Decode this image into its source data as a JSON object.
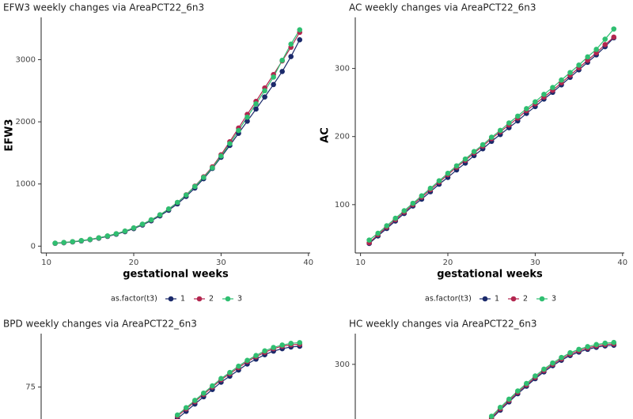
{
  "chart_data": [
    {
      "type": "line",
      "title": "EFW3 weekly changes via AreaPCT22_6n3",
      "xlabel": "gestational weeks",
      "ylabel": "EFW3",
      "legend_title": "as.factor(t3)",
      "legend": "bottom",
      "grid": false,
      "x": [
        11,
        12,
        13,
        14,
        15,
        16,
        17,
        18,
        19,
        20,
        21,
        22,
        23,
        24,
        25,
        26,
        27,
        28,
        29,
        30,
        31,
        32,
        33,
        34,
        35,
        36,
        37,
        38,
        39
      ],
      "xlim": [
        9.4,
        40.2
      ],
      "xticks": [
        10,
        20,
        30,
        40
      ],
      "ylim": [
        -110,
        3680
      ],
      "yticks": [
        0,
        1000,
        2000,
        3000
      ],
      "series": [
        {
          "name": "1",
          "color": "#1b2a6b",
          "values": [
            45,
            55,
            68,
            84,
            104,
            128,
            157,
            192,
            233,
            282,
            340,
            408,
            487,
            578,
            680,
            800,
            935,
            1085,
            1250,
            1430,
            1620,
            1815,
            2010,
            2205,
            2400,
            2600,
            2810,
            3050,
            3320
          ]
        },
        {
          "name": "2",
          "color": "#b3264f",
          "values": [
            47,
            58,
            71,
            88,
            108,
            133,
            163,
            199,
            241,
            292,
            352,
            422,
            503,
            597,
            702,
            825,
            965,
            1115,
            1275,
            1470,
            1680,
            1900,
            2120,
            2330,
            2545,
            2760,
            2980,
            3200,
            3440
          ]
        },
        {
          "name": "3",
          "color": "#2fbf71",
          "values": [
            48,
            59,
            72,
            89,
            109,
            134,
            164,
            200,
            242,
            293,
            353,
            423,
            504,
            598,
            703,
            822,
            960,
            1105,
            1260,
            1450,
            1650,
            1860,
            2075,
            2290,
            2500,
            2720,
            2990,
            3250,
            3480
          ]
        }
      ]
    },
    {
      "type": "line",
      "title": "AC weekly changes via AreaPCT22_6n3",
      "xlabel": "gestational weeks",
      "ylabel": "AC",
      "legend_title": "as.factor(t3)",
      "legend": "bottom",
      "grid": false,
      "x": [
        11,
        12,
        13,
        14,
        15,
        16,
        17,
        18,
        19,
        20,
        21,
        22,
        23,
        24,
        25,
        26,
        27,
        28,
        29,
        30,
        31,
        32,
        33,
        34,
        35,
        36,
        37,
        38,
        39
      ],
      "xlim": [
        9.4,
        40.2
      ],
      "xticks": [
        10,
        20,
        30,
        40
      ],
      "ylim": [
        29,
        375
      ],
      "yticks": [
        100,
        200,
        300
      ],
      "series": [
        {
          "name": "1",
          "color": "#1b2a6b",
          "values": [
            43,
            54,
            65,
            76,
            87,
            98,
            108,
            119,
            130,
            140,
            151,
            161,
            172,
            182,
            193,
            203,
            213,
            223,
            234,
            244,
            255,
            265,
            276,
            287,
            298,
            309,
            320,
            332,
            345
          ]
        },
        {
          "name": "2",
          "color": "#b3264f",
          "values": [
            44,
            56,
            67,
            78,
            89,
            100,
            111,
            122,
            133,
            144,
            155,
            165,
            176,
            186,
            197,
            207,
            217,
            227,
            238,
            248,
            258,
            268,
            279,
            290,
            301,
            312,
            323,
            335,
            346
          ]
        },
        {
          "name": "3",
          "color": "#2fbf71",
          "values": [
            48,
            58,
            69,
            80,
            91,
            102,
            113,
            124,
            135,
            146,
            157,
            167,
            178,
            188,
            199,
            209,
            220,
            230,
            241,
            251,
            262,
            272,
            283,
            294,
            305,
            317,
            328,
            343,
            358
          ]
        }
      ]
    },
    {
      "type": "line",
      "title": "BPD weekly changes via AreaPCT22_6n3",
      "grid": false,
      "x": [
        25,
        26,
        27,
        28,
        29,
        30,
        31,
        32,
        33,
        34,
        35,
        36,
        37,
        38,
        39
      ],
      "xlim": [
        9.4,
        40.2
      ],
      "ylim": [
        0,
        97
      ],
      "yticks": [
        75
      ],
      "series": [
        {
          "name": "1",
          "color": "#1b2a6b",
          "values": [
            62,
            65,
            68,
            71,
            74,
            77,
            79.5,
            82,
            84.5,
            86.5,
            88.3,
            89.8,
            90.8,
            91.5,
            91.8
          ]
        },
        {
          "name": "2",
          "color": "#b3264f",
          "values": [
            63,
            66,
            69,
            72,
            75,
            78,
            80.5,
            83,
            85.5,
            87.5,
            89.3,
            90.8,
            91.8,
            92.4,
            92.6
          ]
        },
        {
          "name": "3",
          "color": "#2fbf71",
          "values": [
            63.5,
            66.5,
            69.5,
            72.5,
            75.5,
            78.5,
            81,
            83.6,
            86,
            88,
            89.9,
            91.3,
            92.3,
            93,
            93.3
          ]
        }
      ]
    },
    {
      "type": "line",
      "title": "HC weekly changes via AreaPCT22_6n3",
      "grid": false,
      "x": [
        25,
        26,
        27,
        28,
        29,
        30,
        31,
        32,
        33,
        34,
        35,
        36,
        37,
        38,
        39
      ],
      "xlim": [
        9.4,
        40.2
      ],
      "ylim": [
        0,
        345
      ],
      "yticks": [
        300
      ],
      "series": [
        {
          "name": "1",
          "color": "#1b2a6b",
          "values": [
            220,
            233,
            245,
            257,
            268,
            279,
            289,
            298,
            306,
            313,
            318,
            322,
            325,
            327,
            328
          ]
        },
        {
          "name": "2",
          "color": "#b3264f",
          "values": [
            222,
            235,
            247,
            259,
            270,
            281,
            291,
            300,
            308,
            315,
            320,
            324,
            327,
            329,
            330
          ]
        },
        {
          "name": "3",
          "color": "#2fbf71",
          "values": [
            224,
            237,
            249,
            261,
            272,
            283,
            293,
            302,
            310,
            317,
            322,
            326,
            329,
            331,
            332
          ]
        }
      ]
    }
  ]
}
